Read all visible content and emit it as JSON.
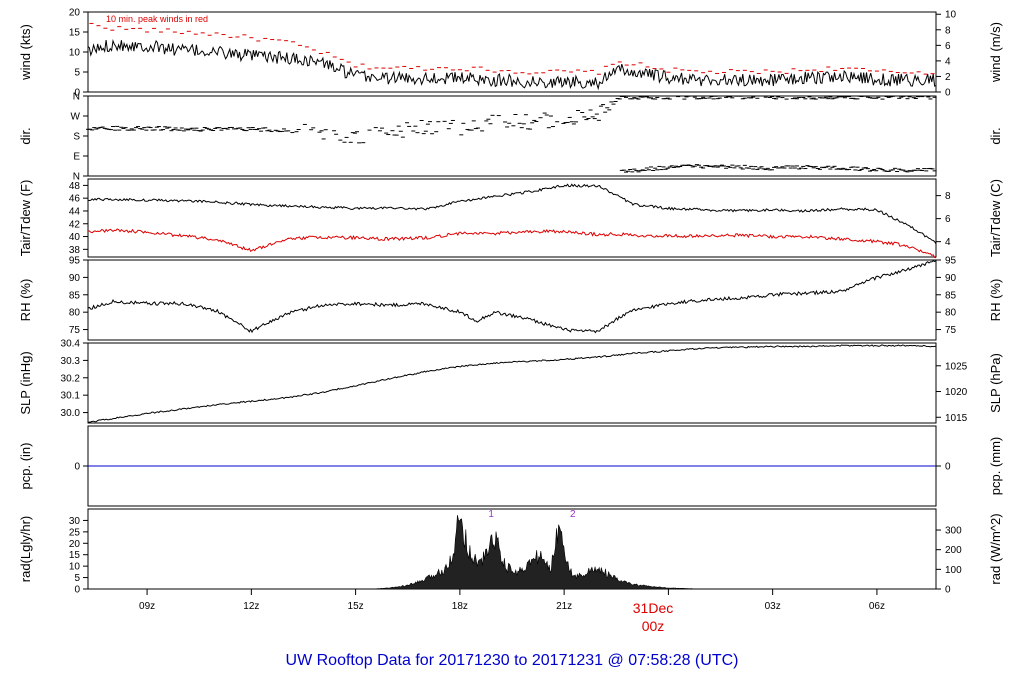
{
  "title": "UW Rooftop Data for 20171230  to  20171231 @ 07:58:28  (UTC)",
  "date_label": "31Dec",
  "date_hour": "00z",
  "colors": {
    "title": "#0000cc",
    "date": "#dd0000",
    "line": "#000000",
    "dewpoint": "#dd0000",
    "peak": "#dd0000",
    "precip": "#0000cc",
    "rad_marker": "#9933cc"
  },
  "x_ticks": [
    "09z",
    "12z",
    "15z",
    "18z",
    "21z",
    "00z",
    "03z",
    "06z"
  ],
  "chart_data": [
    {
      "type": "line",
      "ylabel": "wind (kts)",
      "ylabel_right": "wind (m/s)",
      "ylim": [
        0,
        20
      ],
      "yticks": [
        0,
        5,
        10,
        15,
        20
      ],
      "yticks_right": [
        {
          "label": "0",
          "v": 0
        },
        {
          "label": "2",
          "v": 3.89
        },
        {
          "label": "4",
          "v": 7.78
        },
        {
          "label": "6",
          "v": 11.66
        },
        {
          "label": "8",
          "v": 15.55
        },
        {
          "label": "10",
          "v": 19.44
        }
      ],
      "annotation": "10 min. peak winds in red",
      "x_hours": [
        7.3,
        8,
        9,
        10,
        11,
        12,
        13,
        14,
        15,
        16,
        17,
        18,
        19,
        20,
        21,
        22,
        22.6,
        23,
        24,
        25,
        26,
        27,
        28,
        29,
        30,
        31,
        31.7
      ],
      "series": [
        {
          "values": [
            10,
            12,
            11.5,
            10.5,
            10,
            9,
            8.5,
            7.5,
            4,
            3.5,
            3.5,
            3.5,
            3,
            2.5,
            2.5,
            2.5,
            5.5,
            5,
            3.5,
            3,
            3,
            3,
            3.5,
            4,
            3,
            3,
            3
          ]
        },
        {
          "values": [
            17,
            16,
            15.5,
            15,
            14.5,
            13.5,
            12.5,
            10,
            6.5,
            6,
            6,
            6,
            5.5,
            5,
            5,
            5,
            7.5,
            7,
            5.5,
            5,
            5,
            5,
            5.5,
            6,
            5,
            5,
            5
          ]
        }
      ]
    },
    {
      "type": "scatter",
      "ylabel": "dir.",
      "ylabel_right": "dir.",
      "ylim": [
        0,
        360
      ],
      "yticks": [
        {
          "label": "N",
          "v": 0
        },
        {
          "label": "E",
          "v": 90
        },
        {
          "label": "S",
          "v": 180
        },
        {
          "label": "W",
          "v": 270
        },
        {
          "label": "N",
          "v": 360
        }
      ],
      "x_hours": [
        7.3,
        8,
        9,
        10,
        11,
        12,
        13,
        14,
        15,
        16,
        17,
        18,
        19,
        20,
        21,
        22,
        22.6,
        23,
        24,
        25,
        26,
        27,
        28,
        29,
        30,
        31,
        31.7
      ],
      "series": [
        {
          "values": [
            215,
            215,
            215,
            212,
            210,
            210,
            205,
            200,
            170,
            200,
            225,
            215,
            250,
            245,
            255,
            280,
            350,
            355,
            355,
            355,
            355,
            355,
            355,
            355,
            355,
            355,
            355
          ]
        },
        {
          "values": [
            null,
            null,
            null,
            null,
            null,
            null,
            null,
            null,
            null,
            null,
            null,
            null,
            null,
            null,
            null,
            null,
            20,
            25,
            40,
            45,
            40,
            35,
            40,
            35,
            30,
            25,
            25
          ]
        }
      ]
    },
    {
      "type": "line",
      "ylabel": "Tair/Tdew (F)",
      "ylabel_right": "Tair/Tdew (C)",
      "ylim": [
        36.8,
        49
      ],
      "yticks": [
        38,
        40,
        42,
        44,
        46,
        48
      ],
      "yticks_right": [
        {
          "label": "4",
          "v": 39.2
        },
        {
          "label": "6",
          "v": 42.8
        },
        {
          "label": "8",
          "v": 46.4
        }
      ],
      "x_hours": [
        7.3,
        8,
        9,
        10,
        11,
        12,
        13,
        14,
        15,
        16,
        17,
        18,
        19,
        20,
        21,
        22,
        22.6,
        23,
        24,
        25,
        26,
        27,
        28,
        29,
        30,
        30.5,
        31,
        31.7
      ],
      "series": [
        {
          "values": [
            45.8,
            45.8,
            45.7,
            45.6,
            45.4,
            45,
            44.8,
            44.6,
            44.4,
            44.5,
            44.3,
            45.5,
            46.3,
            47,
            48,
            47.9,
            46.2,
            45,
            44.4,
            44.2,
            44,
            44.2,
            44,
            44.3,
            44.2,
            42.8,
            41.5,
            39
          ]
        },
        {
          "values": [
            40.8,
            41,
            40.7,
            40.1,
            39.5,
            37.8,
            39.6,
            39.9,
            39.8,
            39.6,
            39.8,
            40.5,
            40.5,
            40.8,
            40.8,
            40.3,
            40.4,
            40.2,
            40.1,
            40.1,
            40.2,
            40,
            40,
            39.6,
            39.2,
            38.9,
            38.2,
            36.9
          ]
        }
      ]
    },
    {
      "type": "line",
      "ylabel": "RH (%)",
      "ylabel_right": "RH (%)",
      "ylim": [
        72,
        95
      ],
      "yticks": [
        75,
        80,
        85,
        90,
        95
      ],
      "yticks_right": [
        {
          "label": "75",
          "v": 75
        },
        {
          "label": "80",
          "v": 80
        },
        {
          "label": "85",
          "v": 85
        },
        {
          "label": "90",
          "v": 90
        },
        {
          "label": "95",
          "v": 95
        }
      ],
      "x_hours": [
        7.3,
        8,
        9,
        10,
        11,
        12,
        13,
        14,
        15,
        16,
        17,
        18,
        18.5,
        19,
        20,
        21,
        21.5,
        22,
        22.5,
        23,
        24,
        25,
        26,
        27,
        28,
        29,
        30,
        31,
        31.7
      ],
      "series": [
        {
          "values": [
            81,
            83,
            82.5,
            82.5,
            80.5,
            74.5,
            79.5,
            82,
            82.5,
            82,
            82.5,
            80,
            77.5,
            80,
            78,
            75,
            74.5,
            74.5,
            78,
            80.5,
            82.5,
            83.5,
            84,
            85,
            85.5,
            86,
            90,
            92.5,
            95
          ]
        }
      ]
    },
    {
      "type": "line",
      "ylabel": "SLP (inHg)",
      "ylabel_right": "SLP (hPa)",
      "ylim": [
        29.94,
        30.4
      ],
      "yticks": [
        30,
        30.1,
        30.2,
        30.3,
        30.4
      ],
      "ytick_labels": [
        "30.0",
        "30.1",
        "30.2",
        "30.3",
        "30.4"
      ],
      "yticks_right": [
        {
          "label": "1015",
          "v": 29.973
        },
        {
          "label": "1020",
          "v": 30.121
        },
        {
          "label": "1025",
          "v": 30.269
        }
      ],
      "x_hours": [
        7.3,
        8,
        9,
        10,
        11,
        12,
        13,
        14,
        15,
        16,
        17,
        18,
        19,
        20,
        21,
        22,
        23,
        24,
        25,
        26,
        27,
        28,
        29,
        30,
        31,
        31.7
      ],
      "series": [
        {
          "values": [
            29.945,
            29.965,
            29.995,
            30.02,
            30.045,
            30.065,
            30.085,
            30.115,
            30.155,
            30.195,
            30.235,
            30.265,
            30.285,
            30.295,
            30.305,
            30.32,
            30.34,
            30.355,
            30.37,
            30.375,
            30.38,
            30.38,
            30.385,
            30.385,
            30.385,
            30.38
          ]
        }
      ]
    },
    {
      "type": "line",
      "ylabel": "pcp. (in)",
      "ylabel_right": "pcp. (mm)",
      "ylim": [
        -1,
        1
      ],
      "yticks": [
        0
      ],
      "yticks_right": [
        {
          "label": "0",
          "v": 0
        }
      ],
      "x_hours": [
        7.3,
        31.7
      ],
      "series": [
        {
          "values": [
            0,
            0
          ]
        }
      ]
    },
    {
      "type": "area",
      "ylabel": "rad(Lgly/hr)",
      "ylabel_right": "rad (W/m^2)",
      "ylim": [
        0,
        35
      ],
      "yticks": [
        0,
        5,
        10,
        15,
        20,
        25,
        30
      ],
      "yticks_right": [
        {
          "label": "0",
          "v": 0
        },
        {
          "label": "100",
          "v": 8.6
        },
        {
          "label": "200",
          "v": 17.2
        },
        {
          "label": "300",
          "v": 25.8
        }
      ],
      "markers": [
        {
          "label": "1",
          "x_hour": 18.9
        },
        {
          "label": "2",
          "x_hour": 21.25
        }
      ],
      "x_hours": [
        15.5,
        16,
        16.5,
        17,
        17.5,
        17.8,
        18,
        18.3,
        18.6,
        19,
        19.3,
        19.6,
        20,
        20.3,
        20.6,
        20.9,
        21.1,
        21.3,
        21.6,
        22,
        22.3,
        22.6,
        23,
        23.5,
        24,
        24.5,
        25
      ],
      "series": [
        {
          "values": [
            0,
            0.5,
            1.5,
            4,
            8,
            15,
            32,
            15,
            11,
            23,
            10,
            7,
            11,
            15,
            8,
            31,
            10,
            5,
            7,
            9,
            6,
            3.5,
            2,
            1,
            0.5,
            0.2,
            0
          ]
        }
      ]
    }
  ]
}
